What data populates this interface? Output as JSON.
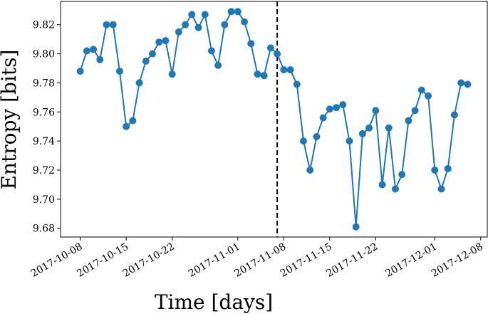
{
  "chart_data": {
    "type": "line",
    "y_label": "Entropy [bits]",
    "x_label": "Time [days]",
    "x": [
      "2017-10-08",
      "2017-10-09",
      "2017-10-10",
      "2017-10-11",
      "2017-10-12",
      "2017-10-13",
      "2017-10-14",
      "2017-10-15",
      "2017-10-16",
      "2017-10-17",
      "2017-10-18",
      "2017-10-19",
      "2017-10-20",
      "2017-10-21",
      "2017-10-22",
      "2017-10-23",
      "2017-10-24",
      "2017-10-25",
      "2017-10-26",
      "2017-10-27",
      "2017-10-28",
      "2017-10-29",
      "2017-10-30",
      "2017-10-31",
      "2017-11-01",
      "2017-11-02",
      "2017-11-03",
      "2017-11-04",
      "2017-11-05",
      "2017-11-06",
      "2017-11-07",
      "2017-11-08",
      "2017-11-09",
      "2017-11-10",
      "2017-11-11",
      "2017-11-12",
      "2017-11-13",
      "2017-11-14",
      "2017-11-15",
      "2017-11-16",
      "2017-11-17",
      "2017-11-18",
      "2017-11-19",
      "2017-11-20",
      "2017-11-21",
      "2017-11-22",
      "2017-11-23",
      "2017-11-24",
      "2017-11-25",
      "2017-11-26",
      "2017-11-27",
      "2017-11-28",
      "2017-11-29",
      "2017-11-30",
      "2017-12-01",
      "2017-12-02",
      "2017-12-03",
      "2017-12-04",
      "2017-12-05",
      "2017-12-06"
    ],
    "values": [
      9.788,
      9.802,
      9.803,
      9.796,
      9.82,
      9.82,
      9.788,
      9.75,
      9.754,
      9.78,
      9.795,
      9.8,
      9.808,
      9.809,
      9.786,
      9.815,
      9.82,
      9.827,
      9.818,
      9.827,
      9.802,
      9.792,
      9.82,
      9.829,
      9.829,
      9.822,
      9.807,
      9.786,
      9.785,
      9.804,
      9.8,
      9.789,
      9.789,
      9.779,
      9.74,
      9.72,
      9.743,
      9.756,
      9.762,
      9.763,
      9.765,
      9.74,
      9.681,
      9.745,
      9.749,
      9.761,
      9.71,
      9.749,
      9.707,
      9.717,
      9.754,
      9.761,
      9.775,
      9.771,
      9.72,
      9.707,
      9.721,
      9.758,
      9.78,
      9.779
    ],
    "color": "#1f77b4",
    "vline": "2017-11-07",
    "xlim": [
      "2017-10-05",
      "2017-12-09"
    ],
    "xticks": [
      "2017-10-08",
      "2017-10-15",
      "2017-10-22",
      "2017-11-01",
      "2017-11-08",
      "2017-11-15",
      "2017-11-22",
      "2017-12-01",
      "2017-12-08"
    ],
    "ylim": [
      9.674,
      9.836
    ],
    "yticks": [
      {
        "value": 9.68,
        "label": "9.68"
      },
      {
        "value": 9.7,
        "label": "9.70"
      },
      {
        "value": 9.72,
        "label": "9.72"
      },
      {
        "value": 9.74,
        "label": "9.74"
      },
      {
        "value": 9.76,
        "label": "9.76"
      },
      {
        "value": 9.78,
        "label": "9.78"
      },
      {
        "value": 9.8,
        "label": "9.80"
      },
      {
        "value": 9.82,
        "label": "9.82"
      }
    ]
  }
}
